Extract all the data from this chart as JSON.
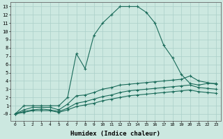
{
  "xlabel": "Humidex (Indice chaleur)",
  "bg_color": "#cce8e0",
  "grid_color": "#aacfc8",
  "line_color": "#1a6b5a",
  "xlim": [
    -0.5,
    23.5
  ],
  "ylim": [
    -0.8,
    13.5
  ],
  "lines": [
    {
      "x": [
        0,
        1,
        2,
        3,
        4,
        5,
        6,
        7,
        8,
        9,
        10,
        11,
        12,
        13,
        14,
        15,
        16,
        17,
        18,
        19,
        20,
        21,
        22,
        23
      ],
      "y": [
        0,
        1,
        1,
        1,
        1,
        1,
        2,
        7.3,
        5.5,
        9.5,
        11,
        12,
        13,
        13,
        13,
        12.3,
        11,
        8.3,
        6.8,
        4.8,
        3.7,
        3.5,
        3.7,
        3.7
      ]
    },
    {
      "x": [
        0,
        1,
        2,
        3,
        4,
        5,
        6,
        7,
        8,
        9,
        10,
        11,
        12,
        13,
        14,
        15,
        16,
        17,
        18,
        19,
        20,
        21,
        22,
        23
      ],
      "y": [
        0,
        0.5,
        0.8,
        0.8,
        0.8,
        0.5,
        1.2,
        2.2,
        2.3,
        2.6,
        3.0,
        3.2,
        3.5,
        3.6,
        3.7,
        3.8,
        3.9,
        4.0,
        4.1,
        4.2,
        4.6,
        4.0,
        3.8,
        3.6
      ]
    },
    {
      "x": [
        0,
        1,
        2,
        3,
        4,
        5,
        6,
        7,
        8,
        9,
        10,
        11,
        12,
        13,
        14,
        15,
        16,
        17,
        18,
        19,
        20,
        21,
        22,
        23
      ],
      "y": [
        0,
        0.3,
        0.5,
        0.6,
        0.5,
        0.3,
        0.7,
        1.3,
        1.5,
        1.8,
        2.1,
        2.3,
        2.6,
        2.8,
        2.9,
        3.0,
        3.1,
        3.2,
        3.3,
        3.4,
        3.5,
        3.2,
        3.1,
        3.0
      ]
    },
    {
      "x": [
        0,
        1,
        2,
        3,
        4,
        5,
        6,
        7,
        8,
        9,
        10,
        11,
        12,
        13,
        14,
        15,
        16,
        17,
        18,
        19,
        20,
        21,
        22,
        23
      ],
      "y": [
        0,
        0.2,
        0.4,
        0.4,
        0.4,
        0.2,
        0.5,
        0.9,
        1.1,
        1.3,
        1.6,
        1.8,
        2.0,
        2.2,
        2.3,
        2.4,
        2.5,
        2.6,
        2.7,
        2.8,
        2.9,
        2.7,
        2.6,
        2.5
      ]
    }
  ],
  "xticks": [
    0,
    1,
    2,
    3,
    4,
    5,
    6,
    7,
    8,
    9,
    10,
    11,
    12,
    13,
    14,
    15,
    16,
    17,
    18,
    19,
    20,
    21,
    22,
    23
  ],
  "xtick_labels": [
    "0",
    "1",
    "2",
    "3",
    "4",
    "5",
    "6",
    "7",
    "8",
    "9",
    "10",
    "11",
    "12",
    "13",
    "14",
    "15",
    "16",
    "17",
    "18",
    "19",
    "20",
    "21",
    "22",
    "23"
  ],
  "yticks": [
    0,
    1,
    2,
    3,
    4,
    5,
    6,
    7,
    8,
    9,
    10,
    11,
    12,
    13
  ],
  "ytick_labels": [
    "-0",
    "1",
    "2",
    "3",
    "4",
    "5",
    "6",
    "7",
    "8",
    "9",
    "10",
    "11",
    "12",
    "13"
  ]
}
